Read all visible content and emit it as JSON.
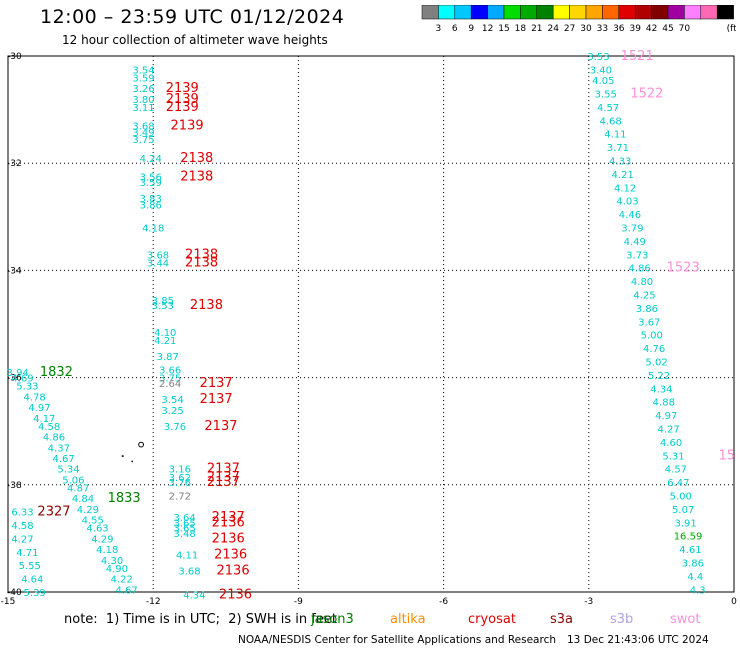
{
  "header": {
    "title": "12:00 – 23:59 UTC 01/12/2024",
    "subtitle": "12 hour collection of altimeter wave heights"
  },
  "colorbar": {
    "colors": [
      "#808080",
      "#00ffff",
      "#00c8ff",
      "#0000ff",
      "#00aaff",
      "#00dd00",
      "#00aa00",
      "#008000",
      "#ffff00",
      "#ffd700",
      "#ffa500",
      "#ff6600",
      "#e00000",
      "#b00000",
      "#800000",
      "#a000a0",
      "#ff80ff",
      "#ff69b4",
      "#000000"
    ],
    "labels": [
      "3",
      "6",
      "9",
      "12",
      "15",
      "18",
      "21",
      "24",
      "27",
      "30",
      "33",
      "36",
      "39",
      "42",
      "45",
      "70",
      "(ft)"
    ]
  },
  "chart_data": {
    "type": "scatter",
    "xlim": [
      -15,
      0
    ],
    "ylim": [
      -40,
      -30
    ],
    "x_ticks": [
      "-15",
      "-12",
      "-9",
      "-6",
      "-3",
      "0"
    ],
    "y_ticks": [
      "-30",
      "-32",
      "-34",
      "-36",
      "-38",
      "-40"
    ],
    "grid": true,
    "legend": [
      {
        "name": "jason3",
        "color": "#008000"
      },
      {
        "name": "altika",
        "color": "#ff8c00"
      },
      {
        "name": "cryosat",
        "color": "#dd0000"
      },
      {
        "name": "s3a",
        "color": "#8b0000"
      },
      {
        "name": "s3b",
        "color": "#b3a0e8"
      },
      {
        "name": "swot",
        "color": "#ff90d8"
      }
    ],
    "labels": [
      {
        "x": -12.2,
        "y": -30.25,
        "text": "3.54",
        "color": "#00cccc"
      },
      {
        "x": -12.2,
        "y": -30.4,
        "text": "3.59",
        "color": "#00cccc"
      },
      {
        "x": -12.2,
        "y": -30.6,
        "text": "3.26",
        "color": "#00cccc"
      },
      {
        "x": -12.2,
        "y": -30.8,
        "text": "3.80",
        "color": "#00cccc"
      },
      {
        "x": -12.2,
        "y": -30.95,
        "text": "3.11",
        "color": "#00cccc"
      },
      {
        "x": -12.2,
        "y": -31.3,
        "text": "3.68",
        "color": "#00cccc"
      },
      {
        "x": -12.2,
        "y": -31.42,
        "text": "3.49",
        "color": "#00cccc"
      },
      {
        "x": -12.2,
        "y": -31.55,
        "text": "3.75",
        "color": "#00cccc"
      },
      {
        "x": -12.05,
        "y": -31.9,
        "text": "4.24",
        "color": "#00cccc"
      },
      {
        "x": -12.05,
        "y": -32.25,
        "text": "3.56",
        "color": "#00cccc"
      },
      {
        "x": -12.05,
        "y": -32.35,
        "text": "3.59",
        "color": "#00cccc"
      },
      {
        "x": -12.05,
        "y": -32.65,
        "text": "3.83",
        "color": "#00cccc"
      },
      {
        "x": -12.05,
        "y": -32.77,
        "text": "3.86",
        "color": "#00cccc"
      },
      {
        "x": -12.0,
        "y": -33.2,
        "text": "4.18",
        "color": "#00cccc"
      },
      {
        "x": -11.9,
        "y": -33.7,
        "text": "3.68",
        "color": "#00cccc"
      },
      {
        "x": -11.9,
        "y": -33.85,
        "text": "3.44",
        "color": "#00cccc"
      },
      {
        "x": -11.8,
        "y": -34.55,
        "text": "3.85",
        "color": "#00cccc"
      },
      {
        "x": -11.8,
        "y": -34.65,
        "text": "3.53",
        "color": "#00cccc"
      },
      {
        "x": -11.75,
        "y": -35.15,
        "text": "4.10",
        "color": "#00cccc"
      },
      {
        "x": -11.75,
        "y": -35.3,
        "text": "4.21",
        "color": "#00cccc"
      },
      {
        "x": -11.7,
        "y": -35.6,
        "text": "3.87",
        "color": "#00cccc"
      },
      {
        "x": -11.65,
        "y": -35.85,
        "text": "3.66",
        "color": "#00cccc"
      },
      {
        "x": -11.65,
        "y": -36.0,
        "text": "3.75",
        "color": "#00cccc"
      },
      {
        "x": -11.65,
        "y": -36.1,
        "text": "2.64",
        "color": "#808080"
      },
      {
        "x": -11.6,
        "y": -36.4,
        "text": "3.54",
        "color": "#00cccc"
      },
      {
        "x": -11.6,
        "y": -36.6,
        "text": "3.25",
        "color": "#00cccc"
      },
      {
        "x": -11.55,
        "y": -36.9,
        "text": "3.76",
        "color": "#00cccc"
      },
      {
        "x": -11.45,
        "y": -37.7,
        "text": "3.16",
        "color": "#00cccc"
      },
      {
        "x": -11.45,
        "y": -37.85,
        "text": "3.62",
        "color": "#00cccc"
      },
      {
        "x": -11.45,
        "y": -37.95,
        "text": "3.76",
        "color": "#00cccc"
      },
      {
        "x": -11.45,
        "y": -38.2,
        "text": "2.72",
        "color": "#808080"
      },
      {
        "x": -11.35,
        "y": -38.6,
        "text": "3.64",
        "color": "#00cccc"
      },
      {
        "x": -11.35,
        "y": -38.7,
        "text": "3.65",
        "color": "#00cccc"
      },
      {
        "x": -11.35,
        "y": -38.8,
        "text": "3.65",
        "color": "#00cccc"
      },
      {
        "x": -11.35,
        "y": -38.9,
        "text": "3.48",
        "color": "#00cccc"
      },
      {
        "x": -11.3,
        "y": -39.3,
        "text": "4.11",
        "color": "#00cccc"
      },
      {
        "x": -11.25,
        "y": -39.6,
        "text": "3.68",
        "color": "#00cccc"
      },
      {
        "x": -11.15,
        "y": -40.05,
        "text": "4.34",
        "color": "#00cccc"
      },
      {
        "x": -11.4,
        "y": -30.6,
        "text": "2139",
        "color": "#dd0000"
      },
      {
        "x": -11.4,
        "y": -30.8,
        "text": "2139",
        "color": "#dd0000"
      },
      {
        "x": -11.4,
        "y": -30.95,
        "text": "2139",
        "color": "#dd0000"
      },
      {
        "x": -11.3,
        "y": -31.3,
        "text": "2139",
        "color": "#dd0000"
      },
      {
        "x": -11.1,
        "y": -31.9,
        "text": "2138",
        "color": "#dd0000"
      },
      {
        "x": -11.1,
        "y": -32.25,
        "text": "2138",
        "color": "#dd0000"
      },
      {
        "x": -11.0,
        "y": -33.7,
        "text": "2138",
        "color": "#dd0000"
      },
      {
        "x": -11.0,
        "y": -33.85,
        "text": "2138",
        "color": "#dd0000"
      },
      {
        "x": -10.9,
        "y": -34.65,
        "text": "2138",
        "color": "#dd0000"
      },
      {
        "x": -10.7,
        "y": -36.1,
        "text": "2137",
        "color": "#dd0000"
      },
      {
        "x": -10.7,
        "y": -36.4,
        "text": "2137",
        "color": "#dd0000"
      },
      {
        "x": -10.6,
        "y": -36.9,
        "text": "2137",
        "color": "#dd0000"
      },
      {
        "x": -10.55,
        "y": -37.7,
        "text": "2137",
        "color": "#dd0000"
      },
      {
        "x": -10.55,
        "y": -37.85,
        "text": "2137",
        "color": "#dd0000"
      },
      {
        "x": -10.55,
        "y": -37.95,
        "text": "2137",
        "color": "#dd0000"
      },
      {
        "x": -10.45,
        "y": -38.6,
        "text": "2137",
        "color": "#dd0000"
      },
      {
        "x": -10.45,
        "y": -38.7,
        "text": "2136",
        "color": "#dd0000"
      },
      {
        "x": -10.45,
        "y": -39.0,
        "text": "2136",
        "color": "#dd0000"
      },
      {
        "x": -10.4,
        "y": -39.3,
        "text": "2136",
        "color": "#dd0000"
      },
      {
        "x": -10.35,
        "y": -39.6,
        "text": "2136",
        "color": "#dd0000"
      },
      {
        "x": -10.3,
        "y": -40.05,
        "text": "2136",
        "color": "#dd0000"
      },
      {
        "x": -14.8,
        "y": -35.9,
        "text": "3.94",
        "color": "#00cccc"
      },
      {
        "x": -14.7,
        "y": -36.0,
        "text": "4.69",
        "color": "#00cccc"
      },
      {
        "x": -14.6,
        "y": -36.15,
        "text": "5.33",
        "color": "#00cccc"
      },
      {
        "x": -14.45,
        "y": -36.35,
        "text": "4.78",
        "color": "#00cccc"
      },
      {
        "x": -14.35,
        "y": -36.55,
        "text": "4.97",
        "color": "#00cccc"
      },
      {
        "x": -14.25,
        "y": -36.75,
        "text": "4.17",
        "color": "#00cccc"
      },
      {
        "x": -14.15,
        "y": -36.9,
        "text": "4.58",
        "color": "#00cccc"
      },
      {
        "x": -14.05,
        "y": -37.1,
        "text": "4.86",
        "color": "#00cccc"
      },
      {
        "x": -13.95,
        "y": -37.3,
        "text": "4.37",
        "color": "#00cccc"
      },
      {
        "x": -13.85,
        "y": -37.5,
        "text": "4.67",
        "color": "#00cccc"
      },
      {
        "x": -13.75,
        "y": -37.7,
        "text": "5.34",
        "color": "#00cccc"
      },
      {
        "x": -13.65,
        "y": -37.9,
        "text": "5.06",
        "color": "#00cccc"
      },
      {
        "x": -13.55,
        "y": -38.05,
        "text": "4.87",
        "color": "#00cccc"
      },
      {
        "x": -13.45,
        "y": -38.25,
        "text": "4.84",
        "color": "#00cccc"
      },
      {
        "x": -13.35,
        "y": -38.45,
        "text": "4.29",
        "color": "#00cccc"
      },
      {
        "x": -13.25,
        "y": -38.65,
        "text": "4.55",
        "color": "#00cccc"
      },
      {
        "x": -13.15,
        "y": -38.8,
        "text": "4.63",
        "color": "#00cccc"
      },
      {
        "x": -13.05,
        "y": -39.0,
        "text": "4.29",
        "color": "#00cccc"
      },
      {
        "x": -12.95,
        "y": -39.2,
        "text": "4.18",
        "color": "#00cccc"
      },
      {
        "x": -12.85,
        "y": -39.4,
        "text": "4.30",
        "color": "#00cccc"
      },
      {
        "x": -12.75,
        "y": -39.55,
        "text": "4.90",
        "color": "#00cccc"
      },
      {
        "x": -12.65,
        "y": -39.75,
        "text": "4.22",
        "color": "#00cccc"
      },
      {
        "x": -12.55,
        "y": -39.95,
        "text": "4.67",
        "color": "#00cccc"
      },
      {
        "x": -14.7,
        "y": -38.5,
        "text": "6.33",
        "color": "#00cccc"
      },
      {
        "x": -14.7,
        "y": -38.75,
        "text": "4.58",
        "color": "#00cccc"
      },
      {
        "x": -14.7,
        "y": -39.0,
        "text": "4.27",
        "color": "#00cccc"
      },
      {
        "x": -14.6,
        "y": -39.25,
        "text": "4.71",
        "color": "#00cccc"
      },
      {
        "x": -14.55,
        "y": -39.5,
        "text": "5.55",
        "color": "#00cccc"
      },
      {
        "x": -14.5,
        "y": -39.75,
        "text": "4.64",
        "color": "#00cccc"
      },
      {
        "x": -14.45,
        "y": -40.0,
        "text": "5.39",
        "color": "#00cccc"
      },
      {
        "x": -14.0,
        "y": -35.9,
        "text": "1832",
        "color": "#008000"
      },
      {
        "x": -12.6,
        "y": -38.25,
        "text": "1833",
        "color": "#008000"
      },
      {
        "x": -14.05,
        "y": -38.5,
        "text": "2327",
        "color": "#8b0000"
      },
      {
        "x": -2.8,
        "y": -30.0,
        "text": "3.53",
        "color": "#00cccc"
      },
      {
        "x": -2.75,
        "y": -30.25,
        "text": "3.40",
        "color": "#00cccc"
      },
      {
        "x": -2.7,
        "y": -30.45,
        "text": "4.05",
        "color": "#00cccc"
      },
      {
        "x": -2.65,
        "y": -30.7,
        "text": "3.55",
        "color": "#00cccc"
      },
      {
        "x": -2.6,
        "y": -30.95,
        "text": "4.57",
        "color": "#00cccc"
      },
      {
        "x": -2.55,
        "y": -31.2,
        "text": "4.68",
        "color": "#00cccc"
      },
      {
        "x": -2.45,
        "y": -31.45,
        "text": "4.11",
        "color": "#00cccc"
      },
      {
        "x": -2.4,
        "y": -31.7,
        "text": "3.71",
        "color": "#00cccc"
      },
      {
        "x": -2.35,
        "y": -31.95,
        "text": "4.33",
        "color": "#00cccc"
      },
      {
        "x": -2.3,
        "y": -32.2,
        "text": "4.21",
        "color": "#00cccc"
      },
      {
        "x": -2.25,
        "y": -32.45,
        "text": "4.12",
        "color": "#00cccc"
      },
      {
        "x": -2.2,
        "y": -32.7,
        "text": "4.03",
        "color": "#00cccc"
      },
      {
        "x": -2.15,
        "y": -32.95,
        "text": "4.46",
        "color": "#00cccc"
      },
      {
        "x": -2.1,
        "y": -33.2,
        "text": "3.79",
        "color": "#00cccc"
      },
      {
        "x": -2.05,
        "y": -33.45,
        "text": "4.49",
        "color": "#00cccc"
      },
      {
        "x": -2.0,
        "y": -33.7,
        "text": "3.73",
        "color": "#00cccc"
      },
      {
        "x": -1.95,
        "y": -33.95,
        "text": "4.86",
        "color": "#00cccc"
      },
      {
        "x": -1.9,
        "y": -34.2,
        "text": "4.80",
        "color": "#00cccc"
      },
      {
        "x": -1.85,
        "y": -34.45,
        "text": "4.25",
        "color": "#00cccc"
      },
      {
        "x": -1.8,
        "y": -34.7,
        "text": "3.86",
        "color": "#00cccc"
      },
      {
        "x": -1.75,
        "y": -34.95,
        "text": "3.67",
        "color": "#00cccc"
      },
      {
        "x": -1.7,
        "y": -35.2,
        "text": "5.00",
        "color": "#00cccc"
      },
      {
        "x": -1.65,
        "y": -35.45,
        "text": "4.76",
        "color": "#00cccc"
      },
      {
        "x": -1.6,
        "y": -35.7,
        "text": "5.02",
        "color": "#00cccc"
      },
      {
        "x": -1.55,
        "y": -35.95,
        "text": "5.22",
        "color": "#00cccc"
      },
      {
        "x": -1.5,
        "y": -36.2,
        "text": "4.34",
        "color": "#00cccc"
      },
      {
        "x": -1.45,
        "y": -36.45,
        "text": "4.88",
        "color": "#00cccc"
      },
      {
        "x": -1.4,
        "y": -36.7,
        "text": "4.97",
        "color": "#00cccc"
      },
      {
        "x": -1.35,
        "y": -36.95,
        "text": "4.27",
        "color": "#00cccc"
      },
      {
        "x": -1.3,
        "y": -37.2,
        "text": "4.60",
        "color": "#00cccc"
      },
      {
        "x": -1.25,
        "y": -37.45,
        "text": "5.31",
        "color": "#00cccc"
      },
      {
        "x": -1.2,
        "y": -37.7,
        "text": "4.57",
        "color": "#00cccc"
      },
      {
        "x": -1.15,
        "y": -37.95,
        "text": "6.47",
        "color": "#00cccc"
      },
      {
        "x": -1.1,
        "y": -38.2,
        "text": "5.00",
        "color": "#00cccc"
      },
      {
        "x": -1.05,
        "y": -38.45,
        "text": "5.07",
        "color": "#00cccc"
      },
      {
        "x": -1.0,
        "y": -38.7,
        "text": "3.91",
        "color": "#00cccc"
      },
      {
        "x": -0.95,
        "y": -38.95,
        "text": "16.59",
        "color": "#00aa00"
      },
      {
        "x": -0.9,
        "y": -39.2,
        "text": "4.61",
        "color": "#00cccc"
      },
      {
        "x": -0.85,
        "y": -39.45,
        "text": "3.86",
        "color": "#00cccc"
      },
      {
        "x": -0.8,
        "y": -39.7,
        "text": "4.4",
        "color": "#00cccc"
      },
      {
        "x": -0.75,
        "y": -39.95,
        "text": "4.3",
        "color": "#00cccc"
      },
      {
        "x": -2.0,
        "y": -30.0,
        "text": "1521",
        "color": "#ff90d8"
      },
      {
        "x": -1.8,
        "y": -30.7,
        "text": "1522",
        "color": "#ff90d8"
      },
      {
        "x": -1.05,
        "y": -33.95,
        "text": "1523",
        "color": "#ff90d8"
      },
      {
        "x": -0.15,
        "y": -37.45,
        "text": "15",
        "color": "#ff90d8"
      }
    ]
  },
  "footer": {
    "note": "note:  1) Time is in UTC;  2) SWH is in feet",
    "credit": "NOAA/NESDIS Center for Satellite Applications and Research",
    "timestamp": "13 Dec 21:43:06 UTC 2024"
  }
}
